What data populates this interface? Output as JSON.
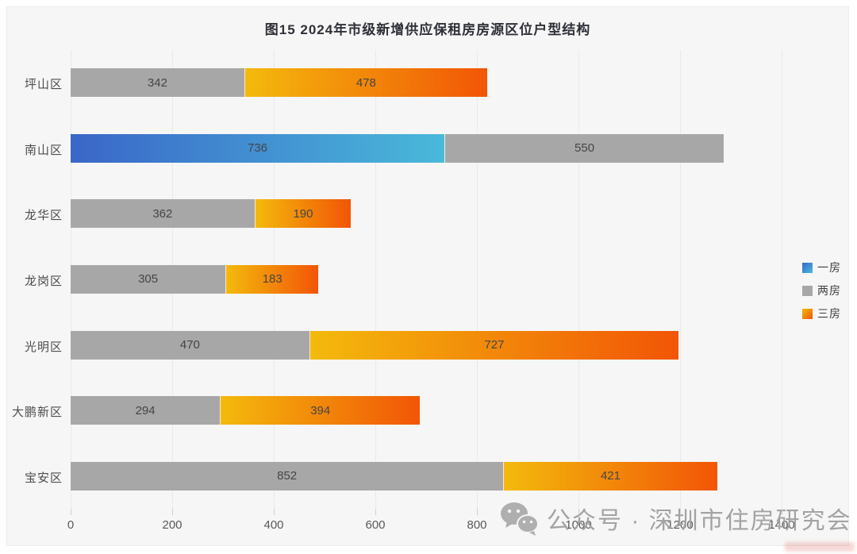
{
  "title": "图15 2024年市级新增供应保租房房源区位户型结构",
  "colors": {
    "card_background": "#f6f6f6",
    "page_background": "#ffffff",
    "gridline": "#e9e9e9",
    "one_room_start": "#3a66c8",
    "one_room_end": "#4ab9da",
    "two_room": "#a7a7a7",
    "three_room_start": "#f3ba0c",
    "three_room_end": "#f25506"
  },
  "chart_data": {
    "type": "bar",
    "orientation": "horizontal",
    "stacked": true,
    "title": "图15 2024年市级新增供应保租房房源区位户型结构",
    "categories": [
      "坪山区",
      "南山区",
      "龙华区",
      "龙岗区",
      "光明区",
      "大鹏新区",
      "宝安区"
    ],
    "series": [
      {
        "name": "一房",
        "color_start": "#3a66c8",
        "color_end": "#4ab9da",
        "values": [
          0,
          736,
          0,
          0,
          0,
          0,
          0
        ]
      },
      {
        "name": "两房",
        "color": "#a7a7a7",
        "values": [
          342,
          550,
          362,
          305,
          470,
          294,
          852
        ]
      },
      {
        "name": "三房",
        "color_start": "#f3ba0c",
        "color_end": "#f25506",
        "values": [
          478,
          0,
          190,
          183,
          727,
          394,
          421
        ]
      }
    ],
    "xlim": [
      0,
      1400
    ],
    "x_ticks": [
      "0",
      "200",
      "400",
      "600",
      "800",
      "1000",
      "1200",
      "1400"
    ],
    "grid": true,
    "legend_position": "right",
    "bar_value_labels_visible": true
  },
  "legend": {
    "items": [
      {
        "label": "一房"
      },
      {
        "label": "两房"
      },
      {
        "label": "三房"
      }
    ]
  },
  "watermark": {
    "icon": "wechat-icon",
    "text": "公众号 · 深圳市住房研究会"
  }
}
